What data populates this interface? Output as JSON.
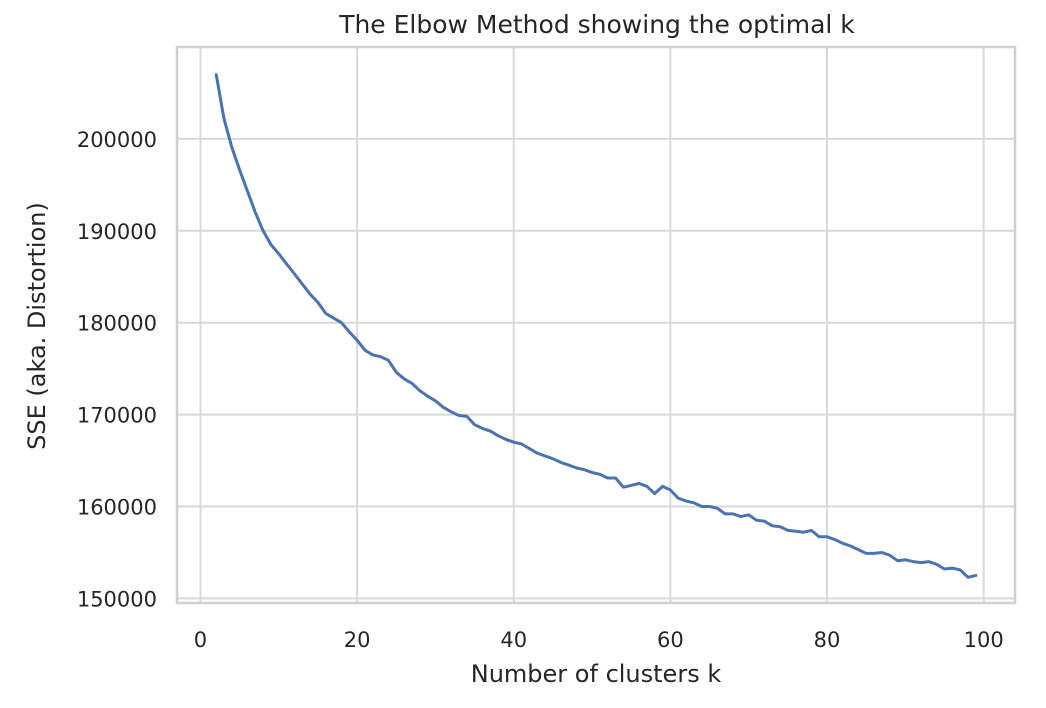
{
  "chart_data": {
    "type": "line",
    "title": "The Elbow Method showing the optimal k",
    "xlabel": "Number of clusters k",
    "ylabel": "SSE (aka. Distortion)",
    "xlim": [
      -3,
      104
    ],
    "ylim": [
      149500,
      210000
    ],
    "xticks": [
      0,
      20,
      40,
      60,
      80,
      100
    ],
    "yticks": [
      150000,
      160000,
      170000,
      180000,
      190000,
      200000
    ],
    "xtick_labels": [
      "0",
      "20",
      "40",
      "60",
      "80",
      "100"
    ],
    "ytick_labels": [
      "150000",
      "160000",
      "170000",
      "180000",
      "190000",
      "200000"
    ],
    "grid": true,
    "line_color": "#4c72b0",
    "series": [
      {
        "x": [
          2,
          3,
          4,
          5,
          6,
          7,
          8,
          9,
          10,
          11,
          12,
          13,
          14,
          15,
          16,
          17,
          18,
          19,
          20,
          21,
          22,
          23,
          24,
          25,
          26,
          27,
          28,
          29,
          30,
          31,
          32,
          33,
          34,
          35,
          36,
          37,
          38,
          39,
          40,
          41,
          42,
          43,
          44,
          45,
          46,
          47,
          48,
          49,
          50,
          51,
          52,
          53,
          54,
          55,
          56,
          57,
          58,
          59,
          60,
          61,
          62,
          63,
          64,
          65,
          66,
          67,
          68,
          69,
          70,
          71,
          72,
          73,
          74,
          75,
          76,
          77,
          78,
          79,
          80,
          81,
          82,
          83,
          84,
          85,
          86,
          87,
          88,
          89,
          90,
          91,
          92,
          93,
          94,
          95,
          96,
          97,
          98,
          99
        ],
        "y": [
          207000,
          202200,
          199100,
          196600,
          194300,
          192000,
          190000,
          188500,
          187500,
          186400,
          185300,
          184200,
          183100,
          182200,
          181000,
          180500,
          180000,
          179000,
          178100,
          177000,
          176500,
          176300,
          175900,
          174600,
          173900,
          173400,
          172600,
          172000,
          171500,
          170800,
          170300,
          169900,
          169800,
          168900,
          168500,
          168200,
          167700,
          167300,
          167000,
          166800,
          166300,
          165800,
          165500,
          165200,
          164800,
          164500,
          164200,
          164000,
          163700,
          163500,
          163100,
          163100,
          162100,
          162300,
          162500,
          162200,
          161400,
          162200,
          161800,
          160900,
          160600,
          160400,
          160000,
          160000,
          159800,
          159200,
          159200,
          158900,
          159100,
          158500,
          158400,
          157900,
          157800,
          157400,
          157300,
          157200,
          157400,
          156700,
          156700,
          156400,
          156000,
          155700,
          155300,
          154900,
          154900,
          155000,
          154700,
          154100,
          154200,
          154000,
          153900,
          154000,
          153700,
          153200,
          153300,
          153100,
          152300,
          152500
        ]
      }
    ]
  }
}
